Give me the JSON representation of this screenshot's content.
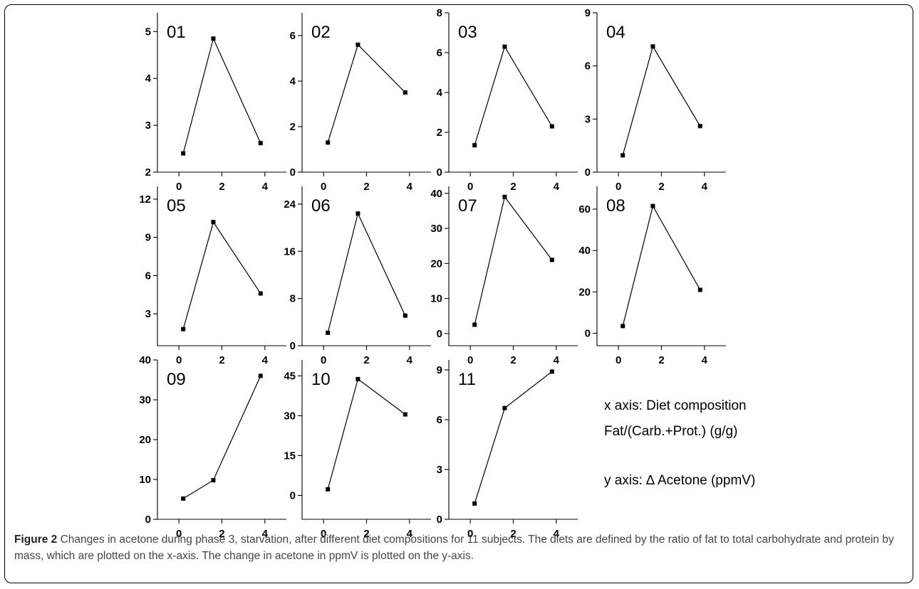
{
  "caption": {
    "label": "Figure 2",
    "text": "Changes in acetone during phase 3, starvation, after different diet compositions for 11 subjects. The diets are defined by the ratio of fat to total carbohydrate and protein by mass, which are plotted on the x-axis. The change in acetone in ppmV is plotted on the y-axis."
  },
  "annotations": {
    "x_axis_line1": "x axis: Diet composition",
    "x_axis_line2": "Fat/(Carb.+Prot.) (g/g)",
    "y_axis_line": "y axis: ∆ Acetone (ppmV)"
  },
  "chart_data": [
    {
      "type": "line",
      "title": "01",
      "x": [
        0.2,
        1.6,
        3.8
      ],
      "y": [
        2.4,
        4.85,
        2.62
      ],
      "xlim": [
        -1,
        5
      ],
      "xticks": [
        0,
        2,
        4
      ],
      "ylim": [
        2,
        5.4
      ],
      "yticks": [
        2,
        3,
        4,
        5
      ]
    },
    {
      "type": "line",
      "title": "02",
      "x": [
        0.2,
        1.6,
        3.8
      ],
      "y": [
        1.3,
        5.6,
        3.5
      ],
      "xlim": [
        -1,
        5
      ],
      "xticks": [
        0,
        2,
        4
      ],
      "ylim": [
        0,
        7
      ],
      "yticks": [
        0,
        2,
        4,
        6
      ]
    },
    {
      "type": "line",
      "title": "03",
      "x": [
        0.2,
        1.6,
        3.8
      ],
      "y": [
        1.35,
        6.3,
        2.3
      ],
      "xlim": [
        -1,
        5
      ],
      "xticks": [
        0,
        2,
        4
      ],
      "ylim": [
        0,
        8
      ],
      "yticks": [
        0,
        2,
        4,
        6,
        8
      ]
    },
    {
      "type": "line",
      "title": "04",
      "x": [
        0.2,
        1.6,
        3.8
      ],
      "y": [
        0.95,
        7.1,
        2.6
      ],
      "xlim": [
        -1,
        5
      ],
      "xticks": [
        0,
        2,
        4
      ],
      "ylim": [
        0,
        9
      ],
      "yticks": [
        0,
        3,
        6,
        9
      ]
    },
    {
      "type": "line",
      "title": "05",
      "x": [
        0.2,
        1.6,
        3.8
      ],
      "y": [
        1.8,
        10.2,
        4.6
      ],
      "xlim": [
        -1,
        5
      ],
      "xticks": [
        0,
        2,
        4
      ],
      "ylim": [
        0.5,
        13
      ],
      "yticks": [
        3,
        6,
        9,
        12
      ]
    },
    {
      "type": "line",
      "title": "06",
      "x": [
        0.2,
        1.6,
        3.8
      ],
      "y": [
        2.2,
        22.4,
        5.1
      ],
      "xlim": [
        -1,
        5
      ],
      "xticks": [
        0,
        2,
        4
      ],
      "ylim": [
        0,
        27
      ],
      "yticks": [
        0,
        8,
        16,
        24
      ]
    },
    {
      "type": "line",
      "title": "07",
      "x": [
        0.2,
        1.6,
        3.8
      ],
      "y": [
        2.5,
        39,
        21
      ],
      "xlim": [
        -1,
        5
      ],
      "xticks": [
        0,
        2,
        4
      ],
      "ylim": [
        -3.5,
        42
      ],
      "yticks": [
        0,
        10,
        20,
        30,
        40
      ]
    },
    {
      "type": "line",
      "title": "08",
      "x": [
        0.2,
        1.6,
        3.8
      ],
      "y": [
        3.5,
        61.5,
        21
      ],
      "xlim": [
        -1,
        5
      ],
      "xticks": [
        0,
        2,
        4
      ],
      "ylim": [
        -6,
        71
      ],
      "yticks": [
        0,
        20,
        40,
        60
      ]
    },
    {
      "type": "line",
      "title": "09",
      "x": [
        0.2,
        1.6,
        3.8
      ],
      "y": [
        5.2,
        9.8,
        36
      ],
      "xlim": [
        -1,
        5
      ],
      "xticks": [
        0,
        2,
        4
      ],
      "ylim": [
        0,
        40
      ],
      "yticks": [
        0,
        10,
        20,
        30,
        40
      ]
    },
    {
      "type": "line",
      "title": "10",
      "x": [
        0.2,
        1.6,
        3.8
      ],
      "y": [
        2.3,
        43.8,
        30.5
      ],
      "xlim": [
        -1,
        5
      ],
      "xticks": [
        0,
        2,
        4
      ],
      "ylim": [
        -9,
        51
      ],
      "yticks": [
        0,
        15,
        30,
        45
      ]
    },
    {
      "type": "line",
      "title": "11",
      "x": [
        0.2,
        1.6,
        3.8
      ],
      "y": [
        0.95,
        6.7,
        8.9
      ],
      "xlim": [
        -1,
        5
      ],
      "xticks": [
        0,
        2,
        4
      ],
      "ylim": [
        0,
        9.6
      ],
      "yticks": [
        0,
        3,
        6,
        9
      ]
    }
  ]
}
